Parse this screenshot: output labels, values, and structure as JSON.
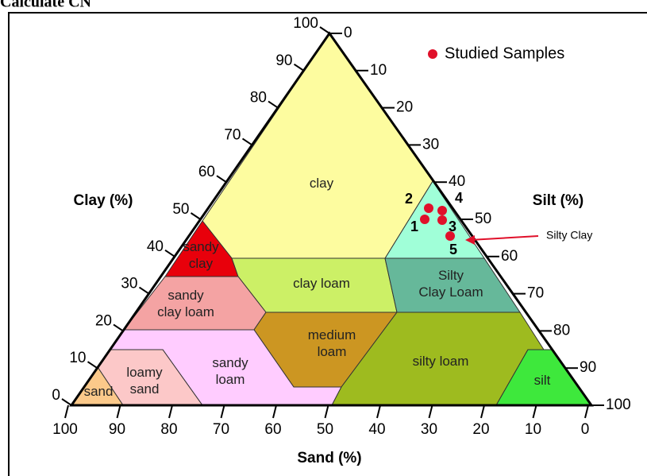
{
  "header": {
    "text": "Calculate CN"
  },
  "legend": {
    "label": "Studied Samples"
  },
  "axes": {
    "clay": {
      "title": "Clay (%)",
      "ticks": [
        "0",
        "10",
        "20",
        "30",
        "40",
        "50",
        "60",
        "70",
        "80",
        "90",
        "100"
      ]
    },
    "silt": {
      "title": "Silt (%)",
      "ticks": [
        "0",
        "10",
        "20",
        "30",
        "40",
        "50",
        "60",
        "70",
        "80",
        "90",
        "100"
      ]
    },
    "sand": {
      "title": "Sand (%)",
      "ticks": [
        "100",
        "90",
        "80",
        "70",
        "60",
        "50",
        "40",
        "30",
        "20",
        "10",
        "0"
      ]
    }
  },
  "regions": [
    {
      "lines": [
        "clay"
      ]
    },
    {
      "lines": [
        "sandy",
        "clay"
      ]
    },
    {
      "lines": [
        "clay loam"
      ]
    },
    {
      "lines": [
        "Silty",
        "Clay Loam"
      ]
    },
    {
      "lines": [
        "sandy",
        "clay loam"
      ]
    },
    {
      "lines": [
        "medium",
        "loam"
      ]
    },
    {
      "lines": [
        "sandy",
        "loam"
      ]
    },
    {
      "lines": [
        "loamy",
        "sand"
      ]
    },
    {
      "lines": [
        "sand"
      ]
    },
    {
      "lines": [
        "silty loam"
      ]
    },
    {
      "lines": [
        "silt"
      ]
    }
  ],
  "samples": [
    "1",
    "2",
    "3",
    "4",
    "5"
  ],
  "annotation": "Silty Clay"
}
